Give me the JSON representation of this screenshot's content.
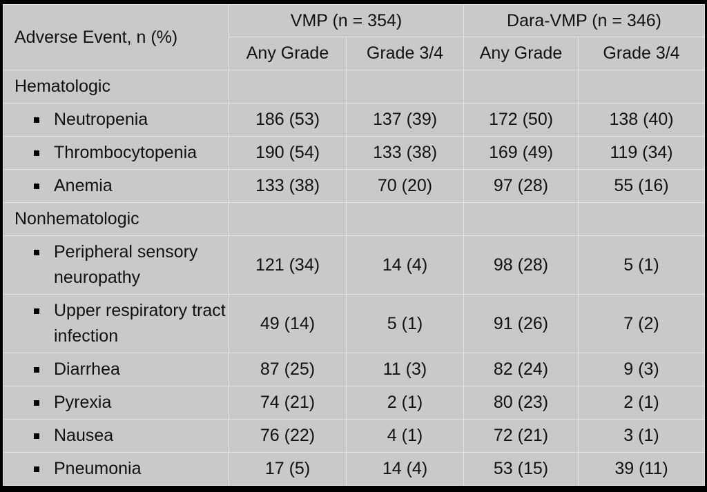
{
  "table": {
    "corner_header": "Adverse Event, n (%)",
    "group_headers": [
      "VMP (n = 354)",
      "Dara-VMP (n = 346)"
    ],
    "sub_headers": [
      "Any Grade",
      "Grade 3/4",
      "Any Grade",
      "Grade 3/4"
    ],
    "sections": [
      {
        "label": "Hematologic",
        "rows": [
          {
            "event": "Neutropenia",
            "values": [
              "186 (53)",
              "137 (39)",
              "172 (50)",
              "138 (40)"
            ]
          },
          {
            "event": "Thrombocytopenia",
            "values": [
              "190 (54)",
              "133 (38)",
              "169 (49)",
              "119 (34)"
            ]
          },
          {
            "event": "Anemia",
            "values": [
              "133 (38)",
              "70 (20)",
              "97 (28)",
              "55 (16)"
            ]
          }
        ]
      },
      {
        "label": "Nonhematologic",
        "rows": [
          {
            "event": "Peripheral sensory neuropathy",
            "values": [
              "121 (34)",
              "14 (4)",
              "98 (28)",
              "5 (1)"
            ]
          },
          {
            "event": "Upper respiratory tract infection",
            "values": [
              "49 (14)",
              "5 (1)",
              "91 (26)",
              "7 (2)"
            ]
          },
          {
            "event": "Diarrhea",
            "values": [
              "87 (25)",
              "11 (3)",
              "82 (24)",
              "9 (3)"
            ]
          },
          {
            "event": "Pyrexia",
            "values": [
              "74 (21)",
              "2 (1)",
              "80 (23)",
              "2 (1)"
            ]
          },
          {
            "event": "Nausea",
            "values": [
              "76 (22)",
              "4 (1)",
              "72 (21)",
              "3 (1)"
            ]
          },
          {
            "event": "Pneumonia",
            "values": [
              "17 (5)",
              "14 (4)",
              "53 (15)",
              "39 (11)"
            ]
          }
        ]
      }
    ]
  },
  "chart_data": {
    "type": "table",
    "columns": [
      "Adverse Event, n (%)",
      "VMP (n = 354) Any Grade",
      "VMP (n = 354) Grade 3/4",
      "Dara-VMP (n = 346) Any Grade",
      "Dara-VMP (n = 346) Grade 3/4"
    ],
    "rows": [
      [
        "Hematologic",
        "",
        "",
        "",
        ""
      ],
      [
        "Neutropenia",
        "186 (53)",
        "137 (39)",
        "172 (50)",
        "138 (40)"
      ],
      [
        "Thrombocytopenia",
        "190 (54)",
        "133 (38)",
        "169 (49)",
        "119 (34)"
      ],
      [
        "Anemia",
        "133 (38)",
        "70 (20)",
        "97 (28)",
        "55 (16)"
      ],
      [
        "Nonhematologic",
        "",
        "",
        "",
        ""
      ],
      [
        "Peripheral sensory neuropathy",
        "121 (34)",
        "14 (4)",
        "98 (28)",
        "5 (1)"
      ],
      [
        "Upper respiratory tract infection",
        "49 (14)",
        "5 (1)",
        "91 (26)",
        "7 (2)"
      ],
      [
        "Diarrhea",
        "87 (25)",
        "11 (3)",
        "82 (24)",
        "9 (3)"
      ],
      [
        "Pyrexia",
        "74 (21)",
        "2 (1)",
        "80 (23)",
        "2 (1)"
      ],
      [
        "Nausea",
        "76 (22)",
        "4 (1)",
        "72 (21)",
        "3 (1)"
      ],
      [
        "Pneumonia",
        "17 (5)",
        "14 (4)",
        "53 (15)",
        "39 (11)"
      ]
    ]
  },
  "colors": {
    "background": "#000000",
    "table_fill": "#c9c9c9",
    "grid_line": "#e4e4e4",
    "text": "#111111"
  }
}
